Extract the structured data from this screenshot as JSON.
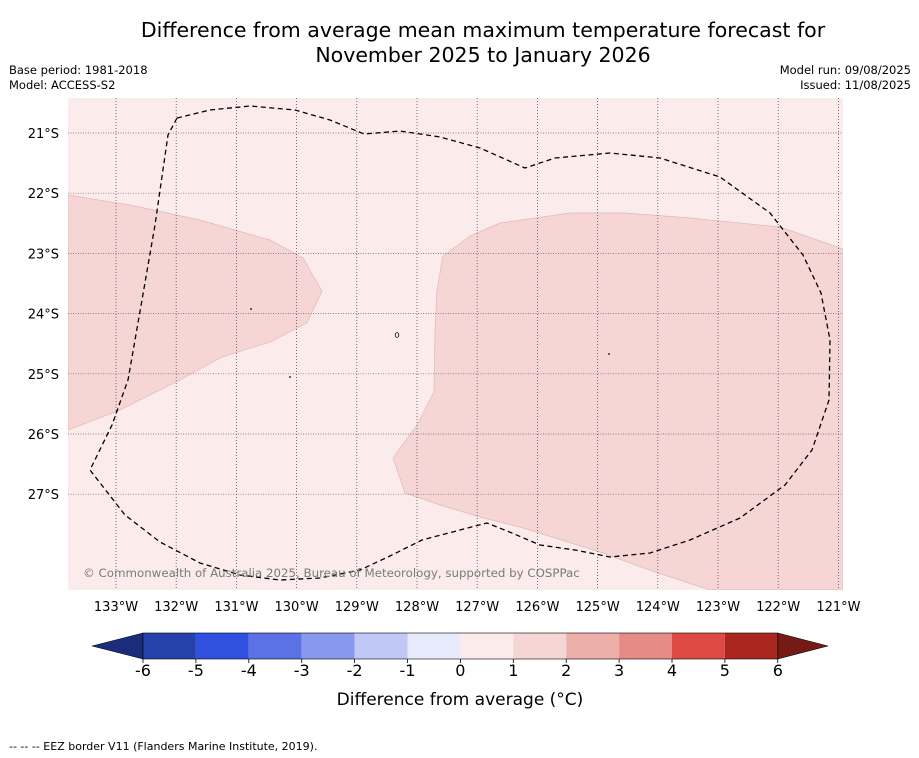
{
  "title": {
    "line1": "Difference from average mean maximum temperature forecast for",
    "line2": "November 2025 to January 2026"
  },
  "meta": {
    "base_period": "Base period: 1981-2018",
    "model": "Model: ACCESS-S2",
    "model_run": "Model run: 09/08/2025",
    "issued": "Issued: 11/08/2025"
  },
  "map": {
    "lon_labels": [
      "133°W",
      "132°W",
      "131°W",
      "130°W",
      "129°W",
      "128°W",
      "127°W",
      "126°W",
      "125°W",
      "124°W",
      "123°W",
      "122°W",
      "121°W"
    ],
    "lat_labels": [
      "21°S",
      "22°S",
      "23°S",
      "24°S",
      "25°S",
      "26°S",
      "27°S"
    ],
    "copyright": "© Commonwealth of Australia 2025, Bureau of Meteorology, supported by COSPPac",
    "background_category": "0 to 1",
    "anomaly_region_category": "1 to 2"
  },
  "colorbar": {
    "tick_labels": [
      "-6",
      "-5",
      "-4",
      "-3",
      "-2",
      "-1",
      "0",
      "1",
      "2",
      "3",
      "4",
      "5",
      "6"
    ],
    "colors": [
      "#2741ab",
      "#3050e0",
      "#5b72e6",
      "#8798ee",
      "#c0c8f5",
      "#e8ebfb",
      "#fbeceb",
      "#f5d6d5",
      "#ecaea9",
      "#e58a84",
      "#dc4a43",
      "#a9271f"
    ],
    "extend_low_color": "#1b2d7a",
    "extend_high_color": "#761a15",
    "label": "Difference from average (°C)"
  },
  "footnote": "-- -- -- EEZ border V11 (Flanders Marine Institute, 2019)."
}
